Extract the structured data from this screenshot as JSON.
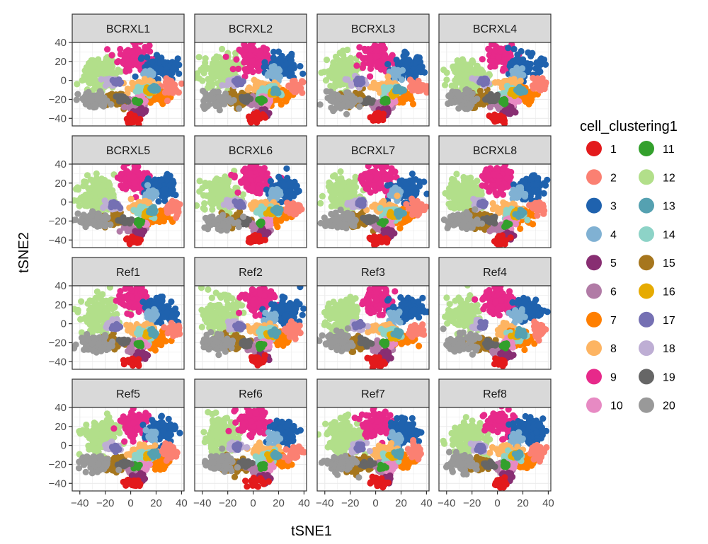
{
  "chart_data": {
    "type": "scatter",
    "title": "",
    "xlabel": "tSNE1",
    "ylabel": "tSNE2",
    "xlim": [
      -46,
      42
    ],
    "ylim": [
      -48,
      40
    ],
    "x_ticks": [
      -40,
      -20,
      0,
      20,
      40
    ],
    "y_ticks": [
      -40,
      -20,
      0,
      20,
      40
    ],
    "x_tick_labels": [
      "−40",
      "−20",
      "0",
      "20",
      "40"
    ],
    "y_tick_labels": [
      "−40",
      "−20",
      "0",
      "20",
      "40"
    ],
    "grid": true,
    "facets": [
      "BCRXL1",
      "BCRXL2",
      "BCRXL3",
      "BCRXL4",
      "BCRXL5",
      "BCRXL6",
      "BCRXL7",
      "BCRXL8",
      "Ref1",
      "Ref2",
      "Ref3",
      "Ref4",
      "Ref5",
      "Ref6",
      "Ref7",
      "Ref8"
    ],
    "facet_layout": {
      "rows": 4,
      "cols": 4
    },
    "legend": {
      "title": "cell_clustering1",
      "position": "right",
      "columns": 2,
      "entries": [
        {
          "label": "1",
          "color": "#E31A1C"
        },
        {
          "label": "2",
          "color": "#FB8072"
        },
        {
          "label": "3",
          "color": "#1F62AE"
        },
        {
          "label": "4",
          "color": "#80B1D3"
        },
        {
          "label": "5",
          "color": "#882E72"
        },
        {
          "label": "6",
          "color": "#B17BA6"
        },
        {
          "label": "7",
          "color": "#FF7F00"
        },
        {
          "label": "8",
          "color": "#FDB462"
        },
        {
          "label": "9",
          "color": "#E7298A"
        },
        {
          "label": "10",
          "color": "#E78AC3"
        },
        {
          "label": "11",
          "color": "#33A02C"
        },
        {
          "label": "12",
          "color": "#B2DF8A"
        },
        {
          "label": "13",
          "color": "#55A1B1"
        },
        {
          "label": "14",
          "color": "#8DD3C7"
        },
        {
          "label": "15",
          "color": "#A6761D"
        },
        {
          "label": "16",
          "color": "#E6AB02"
        },
        {
          "label": "17",
          "color": "#7570B3"
        },
        {
          "label": "18",
          "color": "#BEAED4"
        },
        {
          "label": "19",
          "color": "#666666"
        },
        {
          "label": "20",
          "color": "#999999"
        }
      ]
    },
    "clusters": [
      {
        "id": "12",
        "cx": -25,
        "cy": 8,
        "sx": 9,
        "sy": 12
      },
      {
        "id": "9",
        "cx": 2,
        "cy": 24,
        "sx": 8,
        "sy": 9
      },
      {
        "id": "3",
        "cx": 24,
        "cy": 14,
        "sx": 8,
        "sy": 8
      },
      {
        "id": "4",
        "cx": 16,
        "cy": 8,
        "sx": 3,
        "sy": 4
      },
      {
        "id": "15",
        "cx": -15,
        "cy": -20,
        "sx": 7,
        "sy": 5
      },
      {
        "id": "8",
        "cx": 8,
        "cy": -6,
        "sx": 7,
        "sy": 4
      },
      {
        "id": "7",
        "cx": 20,
        "cy": -16,
        "sx": 6,
        "sy": 5
      },
      {
        "id": "2",
        "cx": 32,
        "cy": -6,
        "sx": 4,
        "sy": 5
      },
      {
        "id": "6",
        "cx": 4,
        "cy": -26,
        "sx": 5,
        "sy": 4
      },
      {
        "id": "14",
        "cx": 12,
        "cy": -12,
        "sx": 5,
        "sy": 4
      },
      {
        "id": "10",
        "cx": 10,
        "cy": -22,
        "sx": 3,
        "sy": 3
      },
      {
        "id": "5",
        "cx": 8,
        "cy": -34,
        "sx": 3,
        "sy": 3
      },
      {
        "id": "1",
        "cx": 2,
        "cy": -40,
        "sx": 4,
        "sy": 3
      },
      {
        "id": "18",
        "cx": -14,
        "cy": -2,
        "sx": 4,
        "sy": 3
      },
      {
        "id": "17",
        "cx": -12,
        "cy": -2,
        "sx": 2,
        "sy": 2
      },
      {
        "id": "11",
        "cx": 6,
        "cy": -22,
        "sx": 1.5,
        "sy": 1.5
      },
      {
        "id": "16",
        "cx": 14,
        "cy": -12,
        "sx": 2,
        "sy": 2
      },
      {
        "id": "13",
        "cx": 18,
        "cy": -10,
        "sx": 2,
        "sy": 2
      },
      {
        "id": "19",
        "cx": -6,
        "cy": -20,
        "sx": 3,
        "sy": 2
      },
      {
        "id": "20",
        "cx": -28,
        "cy": -20,
        "sx": 8,
        "sy": 6
      }
    ]
  }
}
